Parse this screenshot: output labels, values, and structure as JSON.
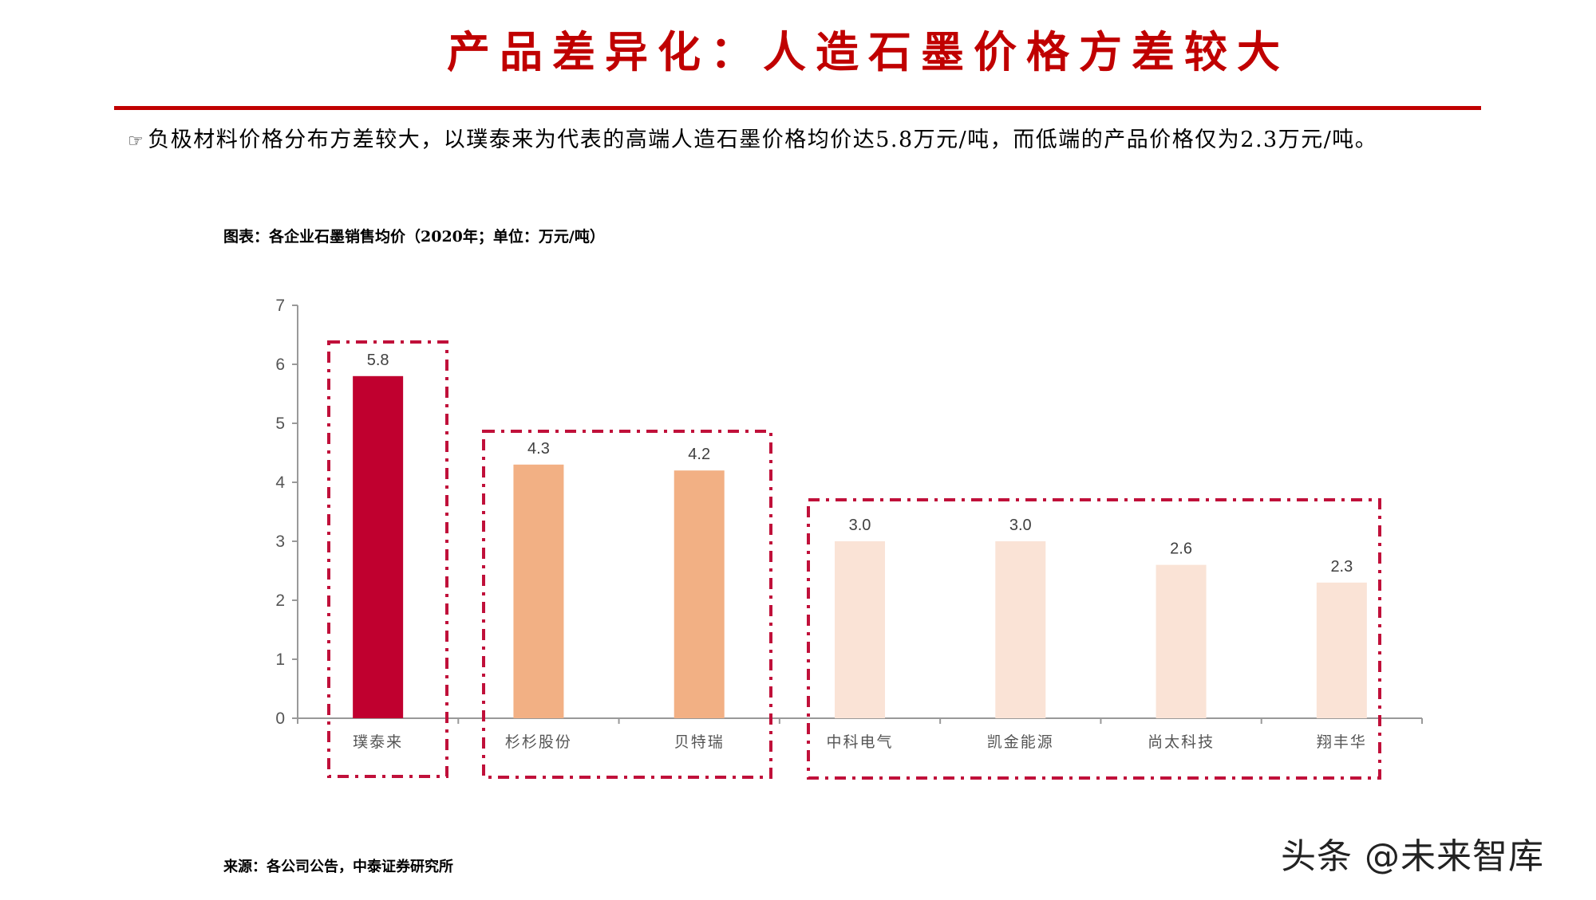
{
  "header": {
    "title": "产品差异化：人造石墨价格方差较大"
  },
  "bullet": {
    "icon": "pointing-hand-icon",
    "icon_glyph": "☞",
    "text": "负极材料价格分布方差较大，以璞泰来为代表的高端人造石墨价格均价达5.8万元/吨，而低端的产品价格仅为2.3万元/吨。"
  },
  "figure": {
    "caption": "图表：各企业石墨销售均价（2020年；单位：万元/吨）",
    "source": "来源：各公司公告，中泰证券研究所"
  },
  "watermark": "头条 @未来智库",
  "colors": {
    "title_red": "#C00000",
    "rule_red": "#C00000",
    "high_end": "#C0002F",
    "mid_end": "#F2B084",
    "low_end": "#FAE3D6",
    "group_box": "#C0103A",
    "axis": "#999999",
    "label": "#404040"
  },
  "chart_data": {
    "type": "bar",
    "title": "各企业石墨销售均价（2020年；单位：万元/吨）",
    "xlabel": "",
    "ylabel": "万元/吨",
    "ylim": [
      0,
      7
    ],
    "yticks": [
      0,
      1,
      2,
      3,
      4,
      5,
      6,
      7
    ],
    "grid": false,
    "legend": null,
    "categories": [
      "璞泰来",
      "杉杉股份",
      "贝特瑞",
      "中科电气",
      "凯金能源",
      "尚太科技",
      "翔丰华"
    ],
    "values": [
      5.8,
      4.3,
      4.2,
      3.0,
      3.0,
      2.6,
      2.3
    ],
    "value_labels": [
      "5.8",
      "4.3",
      "4.2",
      "3.0",
      "3.0",
      "2.6",
      "2.3"
    ],
    "bar_tiers": [
      "high",
      "mid",
      "mid",
      "low",
      "low",
      "low",
      "low"
    ],
    "annotations": [
      {
        "type": "dash-dot-box",
        "group": "high-end",
        "categories": [
          "璞泰来"
        ]
      },
      {
        "type": "dash-dot-box",
        "group": "mid-end",
        "categories": [
          "杉杉股份",
          "贝特瑞"
        ]
      },
      {
        "type": "dash-dot-box",
        "group": "low-end",
        "categories": [
          "中科电气",
          "凯金能源",
          "尚太科技",
          "翔丰华"
        ]
      }
    ]
  }
}
